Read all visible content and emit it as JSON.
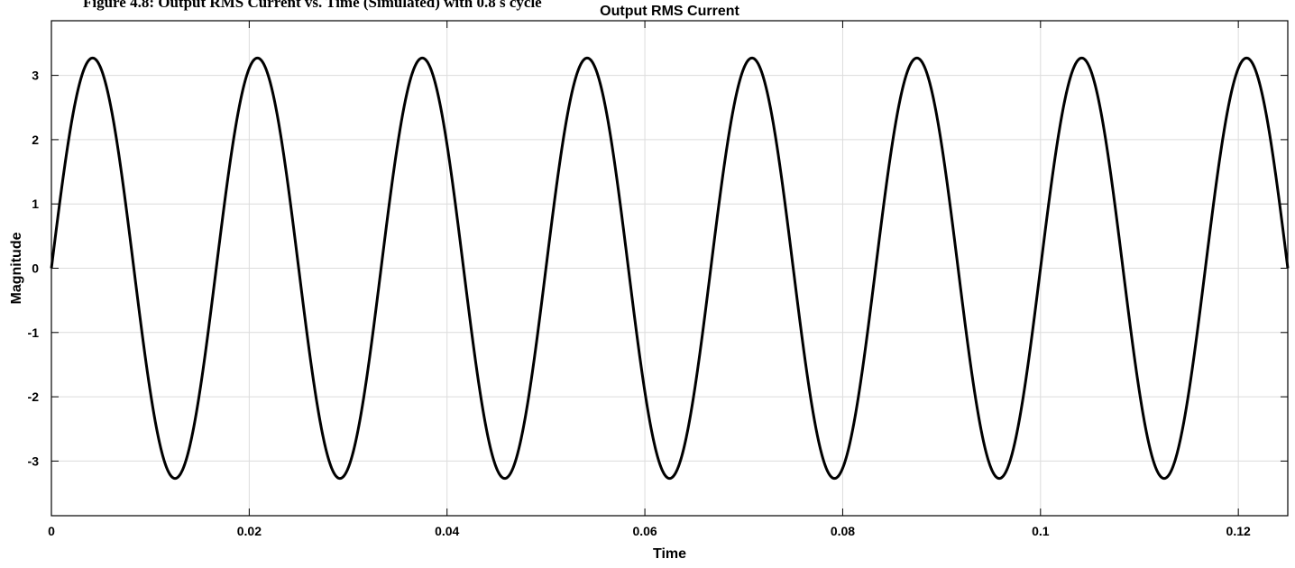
{
  "caption_fragment": "Figure 4.8: Output RMS Current vs. Time (Simulated) with 0.8 s cycle",
  "chart_data": {
    "type": "line",
    "title": "Output RMS Current",
    "xlabel": "Time",
    "ylabel": "Magnitude",
    "xlim": [
      0,
      0.125
    ],
    "ylim": [
      -3.85,
      3.85
    ],
    "x_ticks": [
      0,
      0.02,
      0.04,
      0.06,
      0.08,
      0.1,
      0.12
    ],
    "x_tick_labels": [
      "0",
      "0.02",
      "0.04",
      "0.06",
      "0.08",
      "0.1",
      "0.12"
    ],
    "y_ticks": [
      -3,
      -2,
      -1,
      0,
      1,
      2,
      3
    ],
    "y_tick_labels": [
      "-3",
      "-2",
      "-1",
      "0",
      "1",
      "2",
      "3"
    ],
    "grid": true,
    "series": [
      {
        "color": "#000000",
        "amplitude": 3.27,
        "frequency_hz": 60,
        "phase": 0,
        "x": [
          0,
          0.004167,
          0.008333,
          0.0125,
          0.016667,
          0.020833,
          0.025,
          0.029167,
          0.033333,
          0.0375,
          0.041667,
          0.045833,
          0.05,
          0.054167,
          0.058333,
          0.0625,
          0.066667,
          0.070833,
          0.075,
          0.079167,
          0.083333,
          0.0875,
          0.091667,
          0.095833,
          0.1,
          0.104167,
          0.108333,
          0.1125,
          0.116667,
          0.120833,
          0.125
        ],
        "y": [
          0,
          3.27,
          0,
          -3.27,
          0,
          3.27,
          0,
          -3.27,
          0,
          3.27,
          0,
          -3.27,
          0,
          3.27,
          0,
          -3.27,
          0,
          3.27,
          0,
          -3.27,
          0,
          3.27,
          0,
          -3.27,
          0,
          3.27,
          0,
          -3.27,
          0,
          3.27,
          0
        ]
      }
    ]
  }
}
